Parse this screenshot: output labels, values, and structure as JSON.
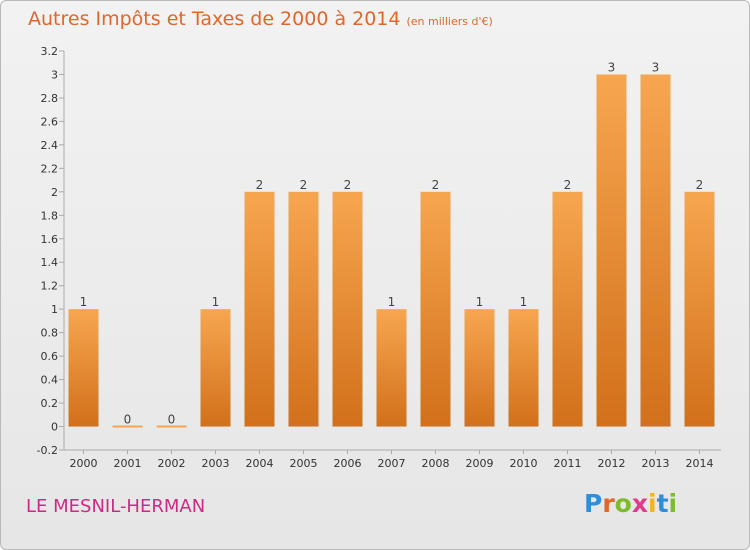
{
  "header": {
    "title": "Autres Impôts et Taxes de 2000 à 2014",
    "subtitle": "(en milliers d'€)"
  },
  "footer": {
    "commune": "LE MESNIL-HERMAN",
    "brand": "Proxiti"
  },
  "colors": {
    "title": "#e0672b",
    "commune": "#cc2a85",
    "bar_top": "#f7a650",
    "bar_bottom": "#d2701b",
    "logo": [
      "#2e8fd8",
      "#e0672b",
      "#7cbd2b",
      "#e23b8c",
      "#f2b51c",
      "#2e8fd8",
      "#7cbd2b"
    ]
  },
  "chart_data": {
    "type": "bar",
    "categories": [
      "2000",
      "2001",
      "2002",
      "2003",
      "2004",
      "2005",
      "2006",
      "2007",
      "2008",
      "2009",
      "2010",
      "2011",
      "2012",
      "2013",
      "2014"
    ],
    "values": [
      1,
      0,
      0,
      1,
      2,
      2,
      2,
      1,
      2,
      1,
      1,
      2,
      3,
      3,
      2
    ],
    "data_labels": [
      "1",
      "0",
      "0",
      "1",
      "2",
      "2",
      "2",
      "1",
      "2",
      "1",
      "1",
      "2",
      "3",
      "3",
      "2"
    ],
    "y_ticks": [
      "3.2",
      "3",
      "2.8",
      "2.6",
      "2.4",
      "2.2",
      "2",
      "1.8",
      "1.6",
      "1.4",
      "1.2",
      "1",
      "0.8",
      "0.6",
      "0.4",
      "0.2",
      "0",
      "-0.2"
    ],
    "ylim": [
      -0.2,
      3.2
    ],
    "grid": false,
    "legend": "none"
  }
}
